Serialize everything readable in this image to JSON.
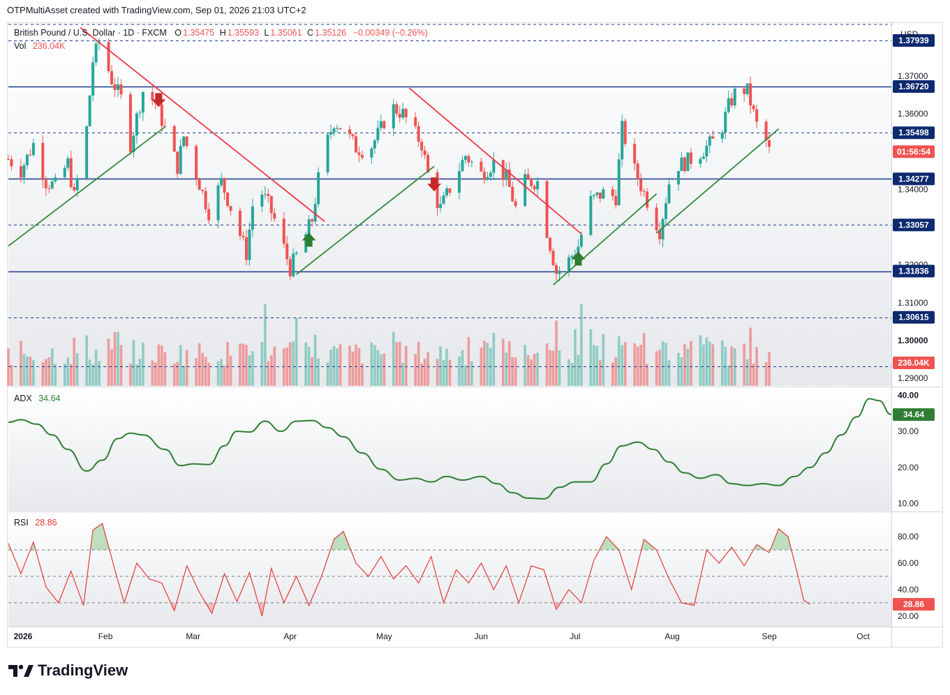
{
  "header": {
    "credit": "OTPMultiAsset created with TradingView.com, Sep 01, 2026 21:03 UTC+2"
  },
  "legend": {
    "symbol": "British Pound / U.S. Dollar · 1D · FXCM",
    "o_label": "O",
    "o_value": "1.35475",
    "h_label": "H",
    "h_value": "1.35593",
    "l_label": "L",
    "l_value": "1.35061",
    "c_label": "C",
    "c_value": "1.35126",
    "change": "−0.00349 (−0.26%)",
    "vol_label": "Vol",
    "vol_value": "236.04K",
    "adx_label": "ADX",
    "adx_value": "34.64",
    "rsi_label": "RSI",
    "rsi_value": "28.86"
  },
  "axis": {
    "currency": "USD",
    "price_ticks": [
      "1.37000",
      "1.36000",
      "1.34000",
      "1.32000",
      "1.31000",
      "1.30000",
      "1.29000"
    ],
    "adx_ticks": [
      "40.00",
      "30.00",
      "20.00",
      "10.00"
    ],
    "rsi_ticks": [
      "80.00",
      "60.00",
      "40.00",
      "20.00"
    ],
    "time_ticks": [
      "2026",
      "Feb",
      "Mar",
      "Apr",
      "May",
      "Jun",
      "Jul",
      "Aug",
      "Sep",
      "Oct"
    ]
  },
  "price_labels": {
    "levels": [
      "1.37939",
      "1.36720",
      "1.35498",
      "1.34277",
      "1.33057",
      "1.31836",
      "1.30615"
    ],
    "countdown": "01:56:54",
    "volume": "236.04K",
    "adx": "34.64",
    "rsi": "28.86"
  },
  "brand": {
    "name": "TradingView"
  },
  "colors": {
    "up": "#26a69a",
    "down": "#ef5350",
    "up_vol": "#8fcbc3",
    "down_vol": "#ee9b9b",
    "level_line": "#1a3c8c",
    "trend_down": "#f23645",
    "trend_up": "#2e8b3d",
    "adx": "#2e7d32",
    "rsi": "#e53935",
    "label_bg": "#0d2a6e"
  },
  "chart_data": [
    {
      "type": "candlestick",
      "title": "British Pound / U.S. Dollar · 1D · FXCM",
      "ylim": [
        1.288,
        1.384
      ],
      "x_range": [
        "2026-01-01",
        "2026-10-10"
      ],
      "last_close": 1.35126,
      "levels": [
        {
          "value": 1.37939,
          "style": "dashed"
        },
        {
          "value": 1.3672,
          "style": "solid"
        },
        {
          "value": 1.35498,
          "style": "dashed"
        },
        {
          "value": 1.34277,
          "style": "solid"
        },
        {
          "value": 1.33057,
          "style": "dashed"
        },
        {
          "value": 1.31836,
          "style": "solid"
        },
        {
          "value": 1.30615,
          "style": "dashed"
        }
      ],
      "trendlines": [
        {
          "color": "down",
          "from": [
            "2026-01-24",
            1.3828
          ],
          "to": [
            "2026-04-12",
            1.3315
          ]
        },
        {
          "color": "up",
          "from": [
            "2026-01-01",
            1.325
          ],
          "to": [
            "2026-02-20",
            1.3565
          ]
        },
        {
          "color": "up",
          "from": [
            "2026-04-03",
            1.3175
          ],
          "to": [
            "2026-05-17",
            1.3461
          ]
        },
        {
          "color": "down",
          "from": [
            "2026-05-09",
            1.3668
          ],
          "to": [
            "2026-07-03",
            1.3282
          ]
        },
        {
          "color": "up",
          "from": [
            "2026-06-24",
            1.3147
          ],
          "to": [
            "2026-07-27",
            1.3388
          ]
        },
        {
          "color": "up",
          "from": [
            "2026-07-27",
            1.3284
          ],
          "to": [
            "2026-09-04",
            1.356
          ]
        }
      ],
      "signals": [
        {
          "date": "2026-02-18",
          "dir": "down"
        },
        {
          "date": "2026-04-07",
          "dir": "up"
        },
        {
          "date": "2026-05-17",
          "dir": "down"
        },
        {
          "date": "2026-07-02",
          "dir": "up"
        }
      ],
      "anchors": [
        [
          "2026-01-01",
          1.348
        ],
        [
          "2026-01-05",
          1.345
        ],
        [
          "2026-01-09",
          1.352
        ],
        [
          "2026-01-13",
          1.342
        ],
        [
          "2026-01-16",
          1.341
        ],
        [
          "2026-01-20",
          1.347
        ],
        [
          "2026-01-22",
          1.338
        ],
        [
          "2026-01-26",
          1.356
        ],
        [
          "2026-01-28",
          1.374
        ],
        [
          "2026-01-30",
          1.379
        ],
        [
          "2026-02-03",
          1.369
        ],
        [
          "2026-02-06",
          1.364
        ],
        [
          "2026-02-09",
          1.352
        ],
        [
          "2026-02-13",
          1.366
        ],
        [
          "2026-02-17",
          1.363
        ],
        [
          "2026-02-20",
          1.356
        ],
        [
          "2026-02-24",
          1.346
        ],
        [
          "2026-02-26",
          1.354
        ],
        [
          "2026-03-02",
          1.344
        ],
        [
          "2026-03-06",
          1.334
        ],
        [
          "2026-03-10",
          1.342
        ],
        [
          "2026-03-14",
          1.333
        ],
        [
          "2026-03-18",
          1.323
        ],
        [
          "2026-03-21",
          1.342
        ],
        [
          "2026-03-25",
          1.336
        ],
        [
          "2026-03-28",
          1.33
        ],
        [
          "2026-04-01",
          1.319
        ],
        [
          "2026-04-05",
          1.326
        ],
        [
          "2026-04-08",
          1.332
        ],
        [
          "2026-04-11",
          1.348
        ],
        [
          "2026-04-15",
          1.358
        ],
        [
          "2026-04-18",
          1.356
        ],
        [
          "2026-04-22",
          1.351
        ],
        [
          "2026-04-26",
          1.35
        ],
        [
          "2026-04-30",
          1.356
        ],
        [
          "2026-05-03",
          1.362
        ],
        [
          "2026-05-07",
          1.36
        ],
        [
          "2026-05-10",
          1.356
        ],
        [
          "2026-05-13",
          1.352
        ],
        [
          "2026-05-16",
          1.34
        ],
        [
          "2026-05-19",
          1.335
        ],
        [
          "2026-05-23",
          1.342
        ],
        [
          "2026-05-27",
          1.349
        ],
        [
          "2026-06-01",
          1.344
        ],
        [
          "2026-06-05",
          1.347
        ],
        [
          "2026-06-09",
          1.343
        ],
        [
          "2026-06-12",
          1.335
        ],
        [
          "2026-06-15",
          1.342
        ],
        [
          "2026-06-19",
          1.342
        ],
        [
          "2026-06-22",
          1.329
        ],
        [
          "2026-06-25",
          1.318
        ],
        [
          "2026-06-28",
          1.32
        ],
        [
          "2026-07-02",
          1.325
        ],
        [
          "2026-07-06",
          1.337
        ],
        [
          "2026-07-10",
          1.339
        ],
        [
          "2026-07-14",
          1.338
        ],
        [
          "2026-07-16",
          1.356
        ],
        [
          "2026-07-20",
          1.345
        ],
        [
          "2026-07-24",
          1.337
        ],
        [
          "2026-07-28",
          1.329
        ],
        [
          "2026-08-01",
          1.346
        ],
        [
          "2026-08-05",
          1.347
        ],
        [
          "2026-08-09",
          1.349
        ],
        [
          "2026-08-13",
          1.352
        ],
        [
          "2026-08-16",
          1.354
        ],
        [
          "2026-08-19",
          1.362
        ],
        [
          "2026-08-22",
          1.367
        ],
        [
          "2026-08-25",
          1.366
        ],
        [
          "2026-08-28",
          1.357
        ],
        [
          "2026-09-01",
          1.35126
        ]
      ]
    },
    {
      "type": "bar",
      "series_name": "Vol",
      "last_value": "236.04K",
      "spikes": [
        [
          "2026-03-22",
          1.0
        ],
        [
          "2026-03-24",
          0.9
        ],
        [
          "2026-04-03",
          0.75
        ],
        [
          "2026-05-03",
          0.82
        ],
        [
          "2026-06-25",
          0.72
        ],
        [
          "2026-07-03",
          0.9
        ],
        [
          "2026-08-01",
          0.88
        ],
        [
          "2026-08-23",
          0.7
        ]
      ]
    },
    {
      "type": "line",
      "series_name": "ADX",
      "ylim": [
        8,
        42
      ],
      "anchors": [
        [
          "2026-01-01",
          32.5
        ],
        [
          "2026-01-05",
          33.2
        ],
        [
          "2026-01-10",
          32.0
        ],
        [
          "2026-01-15",
          29.0
        ],
        [
          "2026-01-20",
          25.0
        ],
        [
          "2026-01-26",
          19.0
        ],
        [
          "2026-01-31",
          22.0
        ],
        [
          "2026-02-05",
          28.0
        ],
        [
          "2026-02-09",
          29.5
        ],
        [
          "2026-02-13",
          29.0
        ],
        [
          "2026-02-20",
          25.0
        ],
        [
          "2026-02-25",
          20.5
        ],
        [
          "2026-03-01",
          21.0
        ],
        [
          "2026-03-06",
          20.8
        ],
        [
          "2026-03-11",
          26.0
        ],
        [
          "2026-03-15",
          30.0
        ],
        [
          "2026-03-19",
          29.8
        ],
        [
          "2026-03-24",
          32.8
        ],
        [
          "2026-03-29",
          30.0
        ],
        [
          "2026-04-03",
          32.8
        ],
        [
          "2026-04-08",
          33.0
        ],
        [
          "2026-04-13",
          31.0
        ],
        [
          "2026-04-18",
          28.5
        ],
        [
          "2026-04-24",
          24.0
        ],
        [
          "2026-04-30",
          19.5
        ],
        [
          "2026-05-06",
          16.5
        ],
        [
          "2026-05-11",
          17.0
        ],
        [
          "2026-05-16",
          16.0
        ],
        [
          "2026-05-21",
          17.5
        ],
        [
          "2026-05-26",
          16.5
        ],
        [
          "2026-06-01",
          17.5
        ],
        [
          "2026-06-06",
          15.5
        ],
        [
          "2026-06-11",
          13.0
        ],
        [
          "2026-06-16",
          11.5
        ],
        [
          "2026-06-21",
          11.3
        ],
        [
          "2026-06-26",
          14.5
        ],
        [
          "2026-07-01",
          16.0
        ],
        [
          "2026-07-06",
          16.0
        ],
        [
          "2026-07-11",
          21.0
        ],
        [
          "2026-07-16",
          26.0
        ],
        [
          "2026-07-21",
          27.0
        ],
        [
          "2026-07-26",
          25.0
        ],
        [
          "2026-07-31",
          21.5
        ],
        [
          "2026-08-05",
          18.5
        ],
        [
          "2026-08-10",
          17.0
        ],
        [
          "2026-08-15",
          18.0
        ],
        [
          "2026-08-20",
          15.5
        ],
        [
          "2026-08-25",
          15.0
        ],
        [
          "2026-08-30",
          15.5
        ],
        [
          "2026-09-04",
          15.0
        ],
        [
          "2026-09-09",
          17.5
        ],
        [
          "2026-09-14",
          20.0
        ],
        [
          "2026-09-19",
          24.0
        ],
        [
          "2026-09-24",
          29.0
        ],
        [
          "2026-09-29",
          34.0
        ],
        [
          "2026-10-03",
          39.0
        ],
        [
          "2026-10-06",
          38.5
        ],
        [
          "2026-10-10",
          34.64
        ]
      ]
    },
    {
      "type": "line",
      "series_name": "RSI",
      "ylim": [
        12,
        98
      ],
      "bands": [
        70,
        50,
        30
      ],
      "anchors": [
        [
          "2026-01-01",
          75
        ],
        [
          "2026-01-05",
          52
        ],
        [
          "2026-01-09",
          76
        ],
        [
          "2026-01-13",
          42
        ],
        [
          "2026-01-17",
          30
        ],
        [
          "2026-01-21",
          54
        ],
        [
          "2026-01-25",
          28
        ],
        [
          "2026-01-28",
          85
        ],
        [
          "2026-01-31",
          90
        ],
        [
          "2026-02-04",
          55
        ],
        [
          "2026-02-07",
          30
        ],
        [
          "2026-02-11",
          60
        ],
        [
          "2026-02-15",
          48
        ],
        [
          "2026-02-19",
          45
        ],
        [
          "2026-02-23",
          24
        ],
        [
          "2026-02-27",
          58
        ],
        [
          "2026-03-03",
          38
        ],
        [
          "2026-03-07",
          22
        ],
        [
          "2026-03-11",
          52
        ],
        [
          "2026-03-15",
          31
        ],
        [
          "2026-03-19",
          53
        ],
        [
          "2026-03-23",
          20
        ],
        [
          "2026-03-26",
          56
        ],
        [
          "2026-03-30",
          30
        ],
        [
          "2026-04-03",
          50
        ],
        [
          "2026-04-07",
          28
        ],
        [
          "2026-04-11",
          50
        ],
        [
          "2026-04-15",
          78
        ],
        [
          "2026-04-18",
          84
        ],
        [
          "2026-04-22",
          60
        ],
        [
          "2026-04-26",
          50
        ],
        [
          "2026-04-30",
          65
        ],
        [
          "2026-05-04",
          48
        ],
        [
          "2026-05-08",
          58
        ],
        [
          "2026-05-12",
          45
        ],
        [
          "2026-05-16",
          65
        ],
        [
          "2026-05-20",
          30
        ],
        [
          "2026-05-24",
          55
        ],
        [
          "2026-05-28",
          45
        ],
        [
          "2026-06-01",
          60
        ],
        [
          "2026-06-05",
          40
        ],
        [
          "2026-06-09",
          58
        ],
        [
          "2026-06-13",
          30
        ],
        [
          "2026-06-17",
          58
        ],
        [
          "2026-06-21",
          55
        ],
        [
          "2026-06-25",
          25
        ],
        [
          "2026-06-29",
          40
        ],
        [
          "2026-07-03",
          30
        ],
        [
          "2026-07-07",
          62
        ],
        [
          "2026-07-11",
          80
        ],
        [
          "2026-07-15",
          70
        ],
        [
          "2026-07-19",
          40
        ],
        [
          "2026-07-23",
          78
        ],
        [
          "2026-07-27",
          70
        ],
        [
          "2026-07-31",
          48
        ],
        [
          "2026-08-04",
          30
        ],
        [
          "2026-08-08",
          28
        ],
        [
          "2026-08-12",
          70
        ],
        [
          "2026-08-16",
          60
        ],
        [
          "2026-08-20",
          72
        ],
        [
          "2026-08-24",
          58
        ],
        [
          "2026-08-28",
          74
        ],
        [
          "2026-09-01",
          68
        ],
        [
          "2026-09-04",
          86
        ],
        [
          "2026-09-07",
          80
        ],
        [
          "2026-09-10",
          52
        ],
        [
          "2026-09-12",
          32
        ],
        [
          "2026-09-14",
          28.86
        ]
      ]
    }
  ]
}
